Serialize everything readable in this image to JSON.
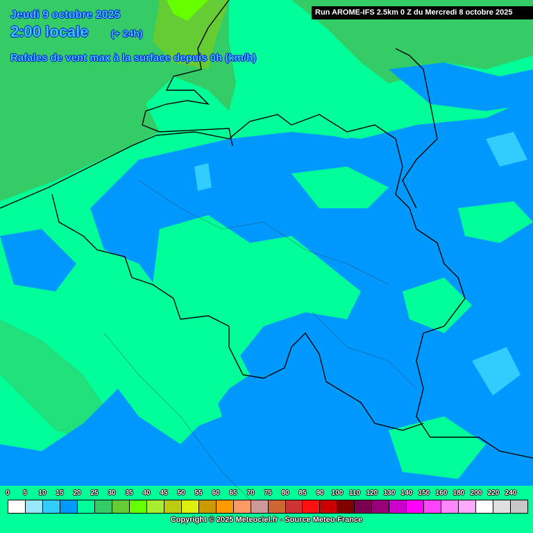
{
  "header": {
    "date": "Jeudi 9 octobre 2025",
    "time": "2:00 locale",
    "lead": "(+ 24h)",
    "parameter": "Rafales de vent max à la surface depuis 0h (km/h)",
    "run": "Run AROME-IFS 2.5km 0 Z du Mercredi 8 octobre 2025"
  },
  "legend": {
    "labels": [
      "0",
      "5",
      "10",
      "15",
      "20",
      "25",
      "30",
      "35",
      "40",
      "45",
      "50",
      "55",
      "60",
      "65",
      "70",
      "75",
      "80",
      "85",
      "90",
      "100",
      "110",
      "120",
      "130",
      "140",
      "150",
      "160",
      "180",
      "200",
      "220",
      "240"
    ],
    "colors": [
      "#ffffff",
      "#99e6ff",
      "#33ccff",
      "#0099ff",
      "#00ff99",
      "#33cc66",
      "#66cc33",
      "#66ff00",
      "#aaee33",
      "#bbcc11",
      "#ddee11",
      "#cc9900",
      "#ff9900",
      "#ff9966",
      "#cc9999",
      "#cc6633",
      "#cc3333",
      "#ff1111",
      "#cc0000",
      "#800000",
      "#7a0050",
      "#990077",
      "#cc00cc",
      "#ff00ff",
      "#ff44ff",
      "#ff88ff",
      "#ffaaff",
      "#ffffff",
      "#e0e0e0",
      "#c8c8c8"
    ]
  },
  "copyright": "Copyright © 2025 Meteociel.fr - Source Meteo-France",
  "map_colors": {
    "sea_wind": "#33cc66",
    "coast_wind": "#66cc33",
    "high": "#66ff00",
    "land_mid": "#00ff99",
    "land_low": "#0099ff",
    "land_lowest": "#33ccff",
    "borders": "#000000"
  }
}
